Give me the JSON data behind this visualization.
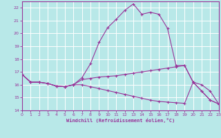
{
  "xlabel": "Windchill (Refroidissement éolien,°C)",
  "bg_color": "#b8e8e8",
  "grid_color": "#ffffff",
  "line_color": "#993399",
  "xlim": [
    0,
    23
  ],
  "ylim": [
    14,
    22.5
  ],
  "x_ticks": [
    0,
    1,
    2,
    3,
    4,
    5,
    6,
    7,
    8,
    9,
    10,
    11,
    12,
    13,
    14,
    15,
    16,
    17,
    18,
    19,
    20,
    21,
    22,
    23
  ],
  "y_ticks": [
    14,
    15,
    16,
    17,
    18,
    19,
    20,
    21,
    22
  ],
  "curve1_x": [
    0,
    1,
    2,
    3,
    4,
    5,
    6,
    7,
    8,
    9,
    10,
    11,
    12,
    13,
    14,
    15,
    16,
    17,
    18,
    19,
    20,
    21,
    22,
    23
  ],
  "curve1_y": [
    16.8,
    16.2,
    16.2,
    16.1,
    15.9,
    15.85,
    16.0,
    16.55,
    17.65,
    19.3,
    20.45,
    21.1,
    21.8,
    22.3,
    21.5,
    21.65,
    21.5,
    20.4,
    17.5,
    17.5,
    16.2,
    15.5,
    14.8,
    14.5
  ],
  "curve2_x": [
    0,
    1,
    2,
    3,
    4,
    5,
    6,
    7,
    8,
    9,
    10,
    11,
    12,
    13,
    14,
    15,
    16,
    17,
    18,
    19,
    20,
    21,
    22,
    23
  ],
  "curve2_y": [
    16.8,
    16.2,
    16.2,
    16.1,
    15.9,
    15.85,
    16.0,
    16.4,
    16.5,
    16.6,
    16.65,
    16.7,
    16.8,
    16.9,
    17.0,
    17.1,
    17.2,
    17.3,
    17.4,
    17.5,
    16.2,
    16.0,
    15.5,
    14.5
  ],
  "curve3_x": [
    0,
    1,
    2,
    3,
    4,
    5,
    6,
    7,
    8,
    9,
    10,
    11,
    12,
    13,
    14,
    15,
    16,
    17,
    18,
    19,
    20,
    21,
    22,
    23
  ],
  "curve3_y": [
    16.8,
    16.2,
    16.2,
    16.1,
    15.9,
    15.85,
    16.0,
    16.0,
    15.85,
    15.7,
    15.55,
    15.4,
    15.25,
    15.1,
    14.95,
    14.8,
    14.7,
    14.65,
    14.6,
    14.55,
    16.2,
    15.5,
    14.8,
    14.5
  ]
}
